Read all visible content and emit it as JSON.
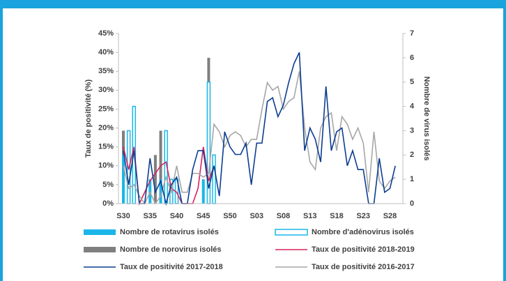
{
  "chart_data": {
    "type": "combo",
    "y_label": "Taux de positivité (%)",
    "y2_label": "Nombre de virus isolés",
    "categories": [
      "S30",
      null,
      null,
      null,
      null,
      "S35",
      null,
      null,
      null,
      null,
      "S40",
      null,
      null,
      null,
      null,
      "S45",
      null,
      null,
      null,
      null,
      "S50",
      null,
      null,
      null,
      null,
      "S03",
      null,
      null,
      null,
      null,
      "S08",
      null,
      null,
      null,
      null,
      "S13",
      null,
      null,
      null,
      null,
      "S18",
      null,
      null,
      null,
      null,
      "S23",
      null,
      null,
      null,
      null,
      "S28",
      null
    ],
    "ylim": [
      0,
      45
    ],
    "yticks": [
      {
        "value": 0,
        "label": "0%"
      },
      {
        "value": 5,
        "label": "5%"
      },
      {
        "value": 10,
        "label": "10%"
      },
      {
        "value": 15,
        "label": "15%"
      },
      {
        "value": 20,
        "label": "20%"
      },
      {
        "value": 25,
        "label": "25%"
      },
      {
        "value": 30,
        "label": "30%"
      },
      {
        "value": 35,
        "label": "35%"
      },
      {
        "value": 40,
        "label": "40%"
      },
      {
        "value": 45,
        "label": "45%"
      }
    ],
    "y2lim": [
      0,
      7
    ],
    "y2ticks": [
      0,
      1,
      2,
      3,
      4,
      5,
      6,
      7
    ],
    "series": [
      {
        "name": "Nombre de rotavirus isolés",
        "type": "bar",
        "style": "filled",
        "axis": "y2",
        "color": "#1ab6e8",
        "values": [
          2,
          1,
          2,
          0,
          0,
          1,
          0,
          1,
          1,
          1,
          1,
          0,
          0,
          0,
          0,
          1,
          5,
          2,
          null,
          null,
          null,
          null,
          null,
          null,
          null,
          null,
          null,
          null,
          null,
          null,
          null,
          null,
          null,
          null,
          null,
          null,
          null,
          null,
          null,
          null,
          null,
          null,
          null,
          null,
          null,
          null,
          null,
          null,
          null,
          null,
          null,
          null
        ]
      },
      {
        "name": "Nombre d'adénovirus isolés",
        "type": "bar",
        "style": "outline",
        "axis": "y2",
        "color": "#1ab6e8",
        "values": [
          0,
          3,
          4,
          0,
          0,
          0,
          0,
          0,
          3,
          1,
          1,
          0,
          0,
          0,
          0,
          0,
          5,
          2,
          null,
          null,
          null,
          null,
          null,
          null,
          null,
          null,
          null,
          null,
          null,
          null,
          null,
          null,
          null,
          null,
          null,
          null,
          null,
          null,
          null,
          null,
          null,
          null,
          null,
          null,
          null,
          null,
          null,
          null,
          null,
          null,
          null,
          null
        ]
      },
      {
        "name": "Nombre de norovirus isolés",
        "type": "bar",
        "style": "filled",
        "axis": "y2",
        "color": "#7f7f7f",
        "values": [
          3,
          0,
          0,
          0,
          0,
          0,
          2,
          3,
          0,
          0,
          0,
          0,
          0,
          0,
          0,
          0,
          6,
          0,
          null,
          null,
          null,
          null,
          null,
          null,
          null,
          null,
          null,
          null,
          null,
          null,
          null,
          null,
          null,
          null,
          null,
          null,
          null,
          null,
          null,
          null,
          null,
          null,
          null,
          null,
          null,
          null,
          null,
          null,
          null,
          null,
          null,
          null
        ]
      },
      {
        "name": "Taux de positivité 2018-2019",
        "type": "line",
        "color": "#d6245c",
        "values": [
          15,
          9,
          15,
          0,
          3,
          6,
          8,
          10,
          11,
          4,
          3,
          0,
          0,
          0,
          4,
          15,
          6,
          10,
          null,
          null,
          null,
          null,
          null,
          null,
          null,
          null,
          null,
          null,
          null,
          null,
          null,
          null,
          null,
          null,
          null,
          null,
          null,
          null,
          null,
          null,
          null,
          null,
          null,
          null,
          null,
          null,
          null,
          null,
          null,
          null,
          null,
          null
        ]
      },
      {
        "name": "Taux de positivité 2017-2018",
        "type": "line",
        "color": "#0b3d91",
        "values": [
          14,
          5,
          14,
          0,
          0,
          12,
          3,
          6,
          0,
          5,
          7,
          0,
          0,
          9,
          14,
          14,
          4,
          10,
          2,
          19,
          15,
          13,
          13,
          16,
          5,
          16,
          16,
          27,
          28,
          23,
          26,
          32,
          37,
          40,
          14,
          20,
          17,
          11,
          31,
          14,
          19,
          20,
          10,
          14,
          9,
          9,
          0,
          0,
          12,
          3,
          4,
          10
        ]
      },
      {
        "name": "Taux de positivité 2016-2017",
        "type": "line",
        "color": "#a6a6a6",
        "values": [
          10,
          4,
          5,
          2,
          0,
          3,
          0,
          2,
          7,
          3,
          10,
          3,
          3,
          8,
          8,
          7,
          8,
          21,
          19,
          15,
          18,
          19,
          18,
          15,
          17,
          17,
          25,
          32,
          30,
          31,
          25,
          27,
          28,
          35,
          20,
          11,
          9,
          20,
          23,
          24,
          14,
          23,
          21,
          17,
          20,
          16,
          3,
          19,
          6,
          4,
          6,
          7
        ]
      }
    ]
  }
}
